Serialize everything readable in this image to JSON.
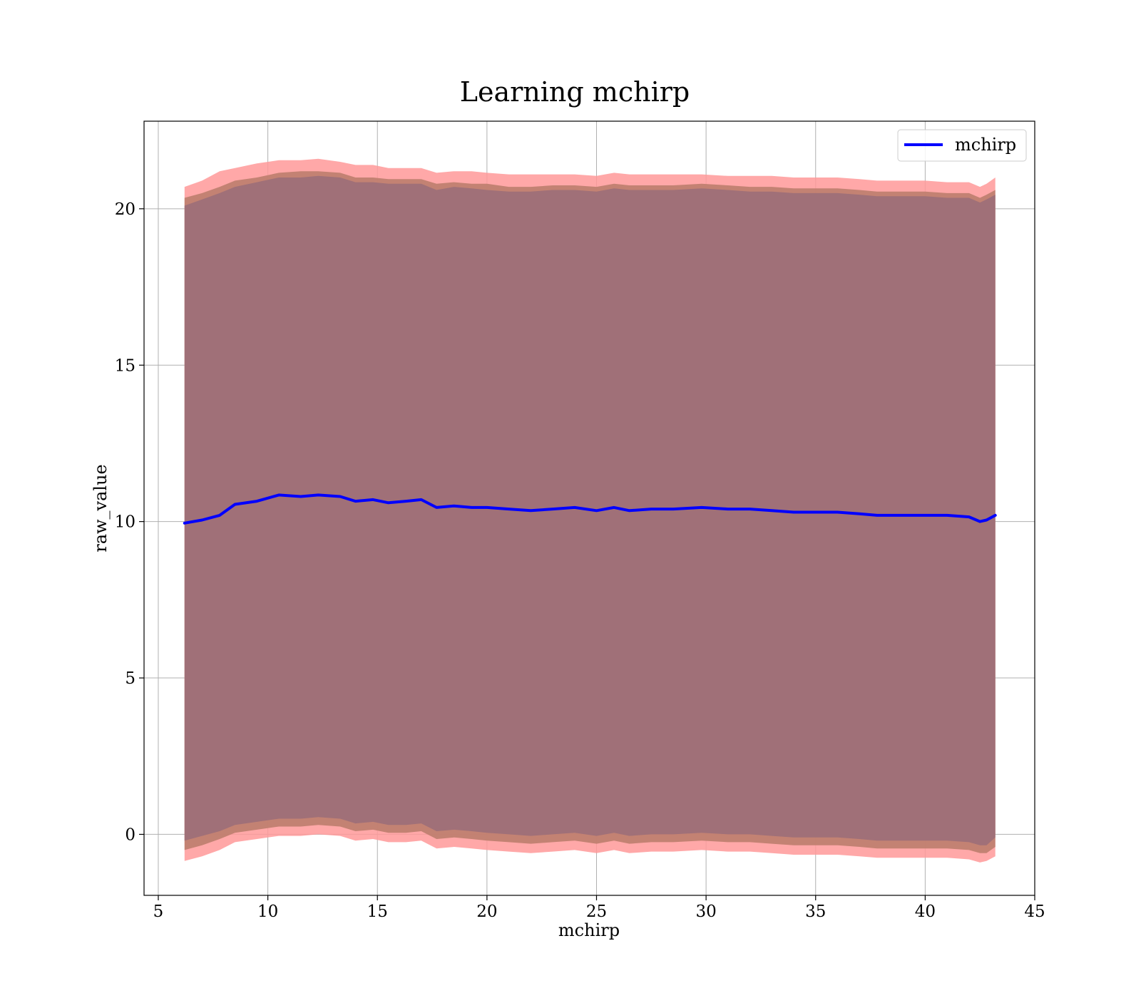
{
  "chart_data": {
    "type": "line",
    "title": "Learning mchirp",
    "xlabel": "mchirp",
    "ylabel": "raw_value",
    "xlim": [
      4.35,
      45
    ],
    "ylim": [
      -1.95,
      22.8
    ],
    "xticks": [
      5,
      10,
      15,
      20,
      25,
      30,
      35,
      40,
      45
    ],
    "yticks": [
      0,
      5,
      10,
      15,
      20
    ],
    "xtick_labels": [
      "5",
      "10",
      "15",
      "20",
      "25",
      "30",
      "35",
      "40",
      "45"
    ],
    "ytick_labels": [
      "0",
      "5",
      "10",
      "15",
      "20"
    ],
    "grid": true,
    "legend": {
      "position": "top-right",
      "entries": [
        "mchirp"
      ]
    },
    "colors": {
      "line": "#0000ff",
      "outer_band": "#ff9999",
      "middle_band": "#c08070",
      "inner_band": "#a07078"
    },
    "series": [
      {
        "name": "mchirp",
        "x": [
          6.2,
          7.0,
          7.8,
          8.5,
          9.5,
          10.5,
          11.5,
          12.3,
          13.3,
          14.0,
          14.8,
          15.5,
          16.3,
          17.0,
          17.7,
          18.5,
          19.3,
          20.0,
          21.0,
          22.0,
          23.0,
          24.0,
          25.0,
          25.8,
          26.5,
          27.5,
          28.5,
          29.8,
          31.0,
          32.0,
          33.0,
          34.0,
          35.0,
          36.0,
          37.0,
          37.8,
          39.0,
          40.0,
          41.0,
          42.0,
          42.5,
          42.8,
          43.2
        ],
        "y": [
          9.95,
          10.05,
          10.2,
          10.55,
          10.65,
          10.85,
          10.8,
          10.85,
          10.8,
          10.65,
          10.7,
          10.6,
          10.65,
          10.7,
          10.45,
          10.5,
          10.45,
          10.45,
          10.4,
          10.35,
          10.4,
          10.45,
          10.35,
          10.45,
          10.35,
          10.4,
          10.4,
          10.45,
          10.4,
          10.4,
          10.35,
          10.3,
          10.3,
          10.3,
          10.25,
          10.2,
          10.2,
          10.2,
          10.2,
          10.15,
          10.0,
          10.05,
          10.2
        ],
        "band_outer_upper": [
          20.7,
          20.9,
          21.2,
          21.3,
          21.45,
          21.55,
          21.55,
          21.6,
          21.5,
          21.4,
          21.4,
          21.3,
          21.3,
          21.3,
          21.15,
          21.2,
          21.2,
          21.15,
          21.1,
          21.1,
          21.1,
          21.1,
          21.05,
          21.15,
          21.1,
          21.1,
          21.1,
          21.1,
          21.05,
          21.05,
          21.05,
          21.0,
          21.0,
          21.0,
          20.95,
          20.9,
          20.9,
          20.9,
          20.85,
          20.85,
          20.7,
          20.8,
          21.0
        ],
        "band_mid_upper": [
          20.35,
          20.5,
          20.7,
          20.9,
          21.0,
          21.15,
          21.2,
          21.2,
          21.15,
          21.0,
          21.0,
          20.95,
          20.95,
          20.95,
          20.8,
          20.85,
          20.8,
          20.8,
          20.7,
          20.7,
          20.75,
          20.75,
          20.7,
          20.8,
          20.75,
          20.75,
          20.75,
          20.8,
          20.75,
          20.7,
          20.7,
          20.65,
          20.65,
          20.65,
          20.6,
          20.55,
          20.55,
          20.55,
          20.5,
          20.5,
          20.35,
          20.45,
          20.6
        ],
        "band_inner_upper": [
          20.1,
          20.3,
          20.5,
          20.7,
          20.85,
          21.0,
          21.0,
          21.05,
          21.0,
          20.85,
          20.85,
          20.8,
          20.8,
          20.8,
          20.6,
          20.7,
          20.65,
          20.6,
          20.55,
          20.55,
          20.6,
          20.6,
          20.55,
          20.65,
          20.6,
          20.6,
          20.6,
          20.65,
          20.6,
          20.55,
          20.55,
          20.5,
          20.5,
          20.5,
          20.45,
          20.4,
          20.4,
          20.4,
          20.35,
          20.35,
          20.2,
          20.3,
          20.45
        ],
        "band_inner_lower": [
          -0.2,
          -0.05,
          0.1,
          0.3,
          0.4,
          0.5,
          0.5,
          0.55,
          0.5,
          0.35,
          0.4,
          0.3,
          0.3,
          0.35,
          0.1,
          0.15,
          0.1,
          0.05,
          0.0,
          -0.05,
          0.0,
          0.05,
          -0.05,
          0.05,
          -0.05,
          0.0,
          0.0,
          0.05,
          0.0,
          0.0,
          -0.05,
          -0.1,
          -0.1,
          -0.1,
          -0.15,
          -0.2,
          -0.2,
          -0.2,
          -0.2,
          -0.25,
          -0.35,
          -0.35,
          -0.1
        ],
        "band_mid_lower": [
          -0.5,
          -0.35,
          -0.15,
          0.05,
          0.15,
          0.25,
          0.25,
          0.3,
          0.25,
          0.1,
          0.15,
          0.05,
          0.05,
          0.1,
          -0.15,
          -0.1,
          -0.15,
          -0.2,
          -0.25,
          -0.3,
          -0.25,
          -0.2,
          -0.3,
          -0.2,
          -0.3,
          -0.25,
          -0.25,
          -0.2,
          -0.25,
          -0.25,
          -0.3,
          -0.35,
          -0.35,
          -0.35,
          -0.4,
          -0.45,
          -0.45,
          -0.45,
          -0.45,
          -0.5,
          -0.6,
          -0.6,
          -0.4
        ],
        "band_outer_lower": [
          -0.85,
          -0.7,
          -0.5,
          -0.25,
          -0.15,
          -0.05,
          -0.05,
          0.0,
          -0.05,
          -0.2,
          -0.15,
          -0.25,
          -0.25,
          -0.2,
          -0.45,
          -0.4,
          -0.45,
          -0.5,
          -0.55,
          -0.6,
          -0.55,
          -0.5,
          -0.6,
          -0.5,
          -0.6,
          -0.55,
          -0.55,
          -0.5,
          -0.55,
          -0.55,
          -0.6,
          -0.65,
          -0.65,
          -0.65,
          -0.7,
          -0.75,
          -0.75,
          -0.75,
          -0.75,
          -0.8,
          -0.9,
          -0.85,
          -0.7
        ]
      }
    ]
  }
}
